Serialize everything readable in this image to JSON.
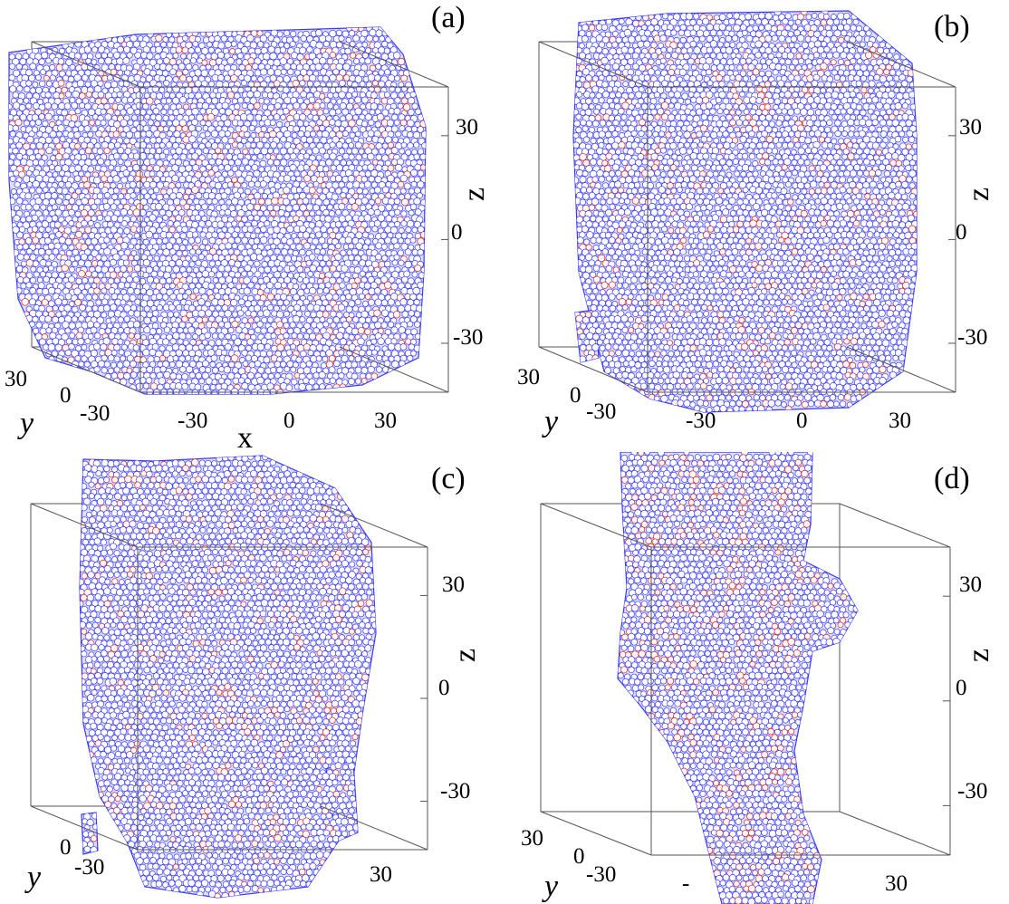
{
  "panels": [
    {
      "id": "a",
      "label": "(a)",
      "z_ticks": [
        "30",
        "0",
        "-30"
      ],
      "y_ticks": [
        "30",
        "0",
        "-30"
      ],
      "x_ticks": [
        "-30",
        "0",
        "30"
      ],
      "z_axis_label": "z",
      "y_axis_label": "y",
      "x_axis_label": "x"
    },
    {
      "id": "b",
      "label": "(b)",
      "z_ticks": [
        "30",
        "0",
        "-30"
      ],
      "y_ticks": [
        "30",
        "0",
        "-30"
      ],
      "x_ticks": [
        "-30",
        "0",
        "30"
      ],
      "z_axis_label": "z",
      "y_axis_label": "y",
      "x_axis_label": ""
    },
    {
      "id": "c",
      "label": "(c)",
      "z_ticks": [
        "30",
        "0",
        "-30"
      ],
      "y_ticks": [
        "",
        "0",
        "-30"
      ],
      "x_ticks": [
        "",
        "",
        "30"
      ],
      "z_axis_label": "z",
      "y_axis_label": "y",
      "x_axis_label": ""
    },
    {
      "id": "d",
      "label": "(d)",
      "z_ticks": [
        "30",
        "0",
        "-30"
      ],
      "y_ticks": [
        "30",
        "0",
        "-30"
      ],
      "x_ticks": [
        "-",
        "",
        "30"
      ],
      "z_axis_label": "z",
      "y_axis_label": "y",
      "x_axis_label": ""
    }
  ],
  "colors": {
    "particle_edge_primary": "#3a3aff",
    "particle_edge_secondary": "#e02020",
    "particle_fill": "#ffffff",
    "box_frame": "#555555"
  }
}
